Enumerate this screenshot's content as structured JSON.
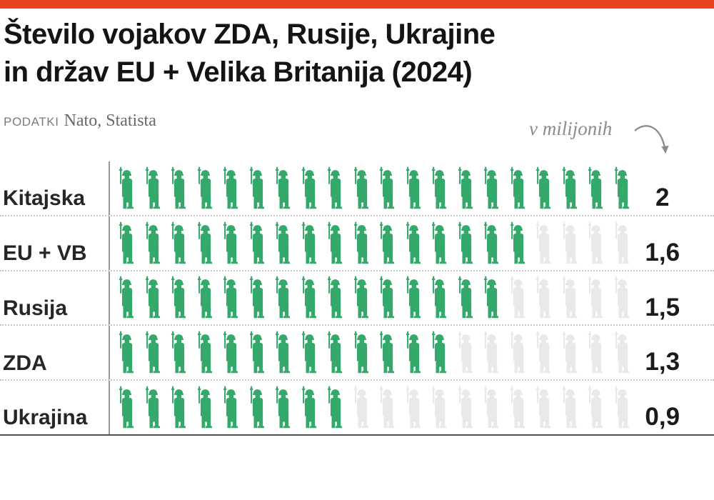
{
  "page": {
    "accent_color": "#e8431f"
  },
  "header": {
    "title_line1": "Število vojakov ZDA, Rusije, Ukrajine",
    "title_line2": "in držav EU + Velika Britanija (2024)",
    "source_label": "PODATKI",
    "source_value": "Nato, Statista"
  },
  "chart_data": {
    "type": "pictogram-bar",
    "title": "Število vojakov ZDA, Rusije, Ukrajine in držav EU + Velika Britanija (2024)",
    "source": "Nato, Statista",
    "unit_annotation": "v milijonih",
    "unit_per_icon_millions": 0.1,
    "icons_per_row": 20,
    "icon": "soldier-icon",
    "categories": [
      "Kitajska",
      "EU + VB",
      "Rusija",
      "ZDA",
      "Ukrajina"
    ],
    "values_millions": [
      2,
      1.6,
      1.5,
      1.3,
      0.9
    ],
    "value_labels": [
      "2",
      "1,6",
      "1,5",
      "1,3",
      "0,9"
    ],
    "filled_icons": [
      20,
      16,
      15,
      13,
      9
    ],
    "xlim_millions": [
      0,
      2
    ],
    "legend_position": "none",
    "grid": "dotted-row-separators",
    "colors": {
      "filled": "#35a86b",
      "empty": "#e9e9eb"
    }
  }
}
